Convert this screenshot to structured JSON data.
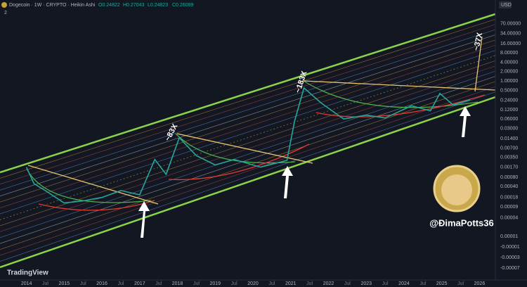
{
  "header": {
    "symbol": "Dogecoin · 1W · CRYPTO · Heikin Ashi",
    "open": "O0.24822",
    "high": "H0.27043",
    "low": "L0.24823",
    "close": "C0.26089",
    "indicator_count": "2"
  },
  "currency": "USD",
  "brand": "TradingView",
  "watermark": "@ĐimaPotts36",
  "chart_data": {
    "type": "line",
    "log_scale": true,
    "color": "#26a69a",
    "x": [
      2014.0,
      2014.2,
      2014.5,
      2015.0,
      2015.5,
      2016.0,
      2016.5,
      2017.0,
      2017.4,
      2017.7,
      2018.05,
      2018.5,
      2019.0,
      2019.5,
      2020.2,
      2020.9,
      2021.1,
      2021.35,
      2021.8,
      2022.4,
      2023.0,
      2023.5,
      2024.2,
      2024.7,
      2024.95,
      2025.3,
      2025.6,
      2025.75
    ],
    "values": [
      0.0017,
      0.0005,
      0.0003,
      0.00012,
      0.00014,
      0.00018,
      0.0003,
      0.00022,
      0.003,
      0.001,
      0.015,
      0.004,
      0.002,
      0.003,
      0.0017,
      0.0028,
      0.05,
      0.6,
      0.2,
      0.06,
      0.08,
      0.065,
      0.16,
      0.11,
      0.4,
      0.17,
      0.22,
      0.25
    ],
    "xlim": [
      2013.3,
      2026.42
    ],
    "xticks": [
      {
        "value": 2014,
        "label": "2014"
      },
      {
        "value": 2014.5,
        "label": "Jul"
      },
      {
        "value": 2015,
        "label": "2015"
      },
      {
        "value": 2015.5,
        "label": "Jul"
      },
      {
        "value": 2016,
        "label": "2016"
      },
      {
        "value": 2016.5,
        "label": "Jul"
      },
      {
        "value": 2017,
        "label": "2017"
      },
      {
        "value": 2017.5,
        "label": "Jul"
      },
      {
        "value": 2018,
        "label": "2018"
      },
      {
        "value": 2018.5,
        "label": "Jul"
      },
      {
        "value": 2019,
        "label": "2019"
      },
      {
        "value": 2019.5,
        "label": "Jul"
      },
      {
        "value": 2020,
        "label": "2020"
      },
      {
        "value": 2020.5,
        "label": "Jul"
      },
      {
        "value": 2021,
        "label": "2021"
      },
      {
        "value": 2021.5,
        "label": "Jul"
      },
      {
        "value": 2022,
        "label": "2022"
      },
      {
        "value": 2022.5,
        "label": "Jul"
      },
      {
        "value": 2023,
        "label": "2023"
      },
      {
        "value": 2023.5,
        "label": "Jul"
      },
      {
        "value": 2024,
        "label": "2024"
      },
      {
        "value": 2024.5,
        "label": "Jul"
      },
      {
        "value": 2025,
        "label": "2025"
      },
      {
        "value": 2025.5,
        "label": "Jul"
      },
      {
        "value": 2026,
        "label": "2026"
      }
    ],
    "ylim": [
      4e-07,
      240
    ],
    "yticks": [
      {
        "value": 70,
        "label": "70.00000"
      },
      {
        "value": 34,
        "label": "34.00000"
      },
      {
        "value": 16,
        "label": "16.00000"
      },
      {
        "value": 8,
        "label": "8.00000"
      },
      {
        "value": 4,
        "label": "4.00000"
      },
      {
        "value": 2,
        "label": "2.00000"
      },
      {
        "value": 1,
        "label": "1.00000"
      },
      {
        "value": 0.5,
        "label": "0.50000"
      },
      {
        "value": 0.24,
        "label": "0.24000"
      },
      {
        "value": 0.12,
        "label": "0.12000"
      },
      {
        "value": 0.06,
        "label": "0.06000"
      },
      {
        "value": 0.03,
        "label": "0.03000"
      },
      {
        "value": 0.014,
        "label": "0.01400"
      },
      {
        "value": 0.007,
        "label": "0.00700"
      },
      {
        "value": 0.0035,
        "label": "0.00350"
      },
      {
        "value": 0.0017,
        "label": "0.00170"
      },
      {
        "value": 0.0008,
        "label": "0.00080"
      },
      {
        "value": 0.0004,
        "label": "0.00040"
      },
      {
        "value": 0.00018,
        "label": "0.00018"
      },
      {
        "value": 9e-05,
        "label": "0.00009"
      },
      {
        "value": 4e-05,
        "label": "0.00004"
      },
      {
        "value": 1e-05,
        "label": "0.00001"
      },
      {
        "value": -1e-05,
        "label": "-0.00001"
      },
      {
        "value": -3e-05,
        "label": "-0.00003"
      },
      {
        "value": -7e-05,
        "label": "-0.00007"
      }
    ],
    "annotations": [
      "~83X",
      "~183X",
      "~37X"
    ]
  }
}
